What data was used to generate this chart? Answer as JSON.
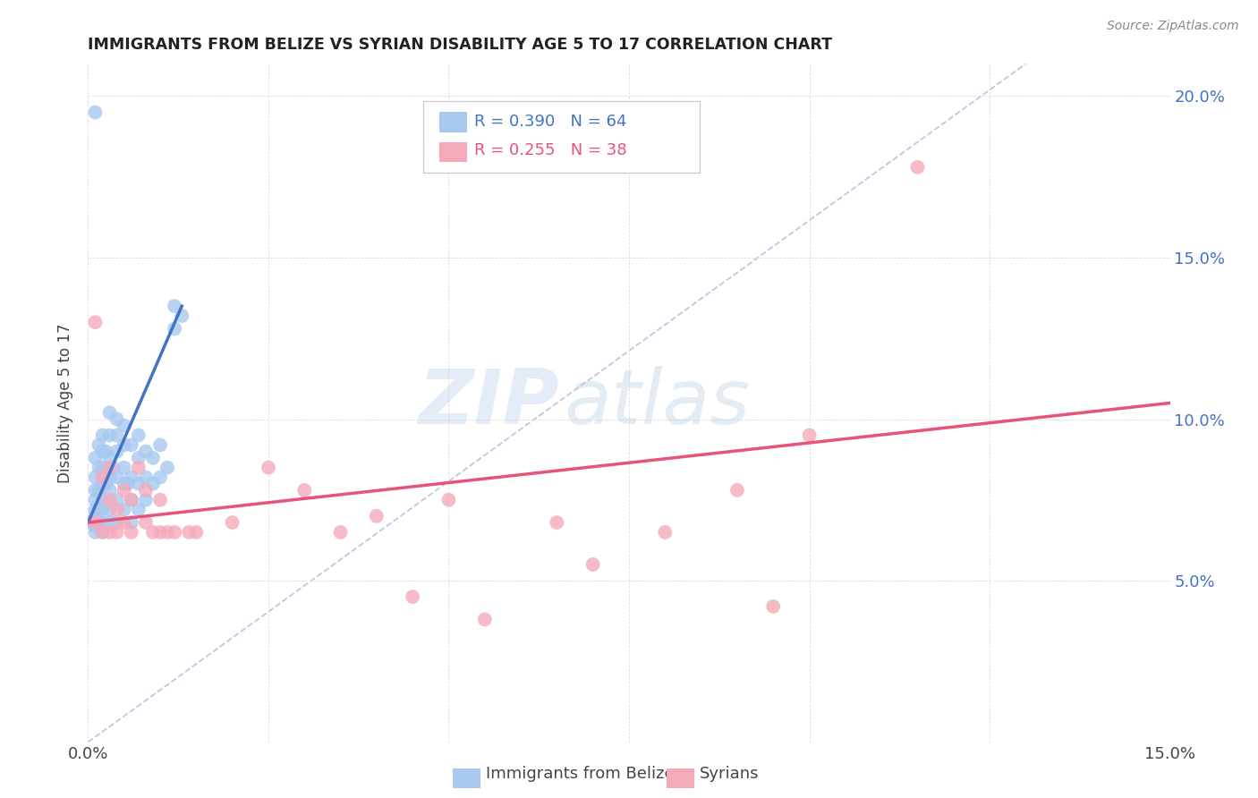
{
  "title": "IMMIGRANTS FROM BELIZE VS SYRIAN DISABILITY AGE 5 TO 17 CORRELATION CHART",
  "source": "Source: ZipAtlas.com",
  "ylabel": "Disability Age 5 to 17",
  "legend_label1": "Immigrants from Belize",
  "legend_label2": "Syrians",
  "r1": 0.39,
  "n1": 64,
  "r2": 0.255,
  "n2": 38,
  "xlim": [
    0.0,
    0.15
  ],
  "ylim": [
    0.0,
    0.21
  ],
  "color_belize": "#A8C8F0",
  "color_syria": "#F5AABB",
  "color_belize_line": "#4472C4",
  "color_syria_line": "#E8537A",
  "color_diagonal": "#B0B8D8",
  "watermark_zip": "ZIP",
  "watermark_atlas": "atlas",
  "belize_x": [
    0.0005,
    0.001,
    0.001,
    0.001,
    0.001,
    0.001,
    0.001,
    0.001,
    0.001,
    0.0015,
    0.0015,
    0.0015,
    0.0015,
    0.0015,
    0.002,
    0.002,
    0.002,
    0.002,
    0.002,
    0.002,
    0.002,
    0.002,
    0.0025,
    0.0025,
    0.003,
    0.003,
    0.003,
    0.003,
    0.003,
    0.003,
    0.003,
    0.0035,
    0.004,
    0.004,
    0.004,
    0.004,
    0.004,
    0.004,
    0.005,
    0.005,
    0.005,
    0.005,
    0.005,
    0.0055,
    0.006,
    0.006,
    0.006,
    0.006,
    0.007,
    0.007,
    0.007,
    0.007,
    0.008,
    0.008,
    0.008,
    0.009,
    0.009,
    0.01,
    0.01,
    0.011,
    0.012,
    0.012,
    0.013,
    0.001
  ],
  "belize_y": [
    0.068,
    0.065,
    0.067,
    0.07,
    0.072,
    0.075,
    0.078,
    0.082,
    0.088,
    0.068,
    0.072,
    0.078,
    0.085,
    0.092,
    0.065,
    0.068,
    0.072,
    0.075,
    0.08,
    0.085,
    0.09,
    0.095,
    0.08,
    0.09,
    0.068,
    0.072,
    0.078,
    0.082,
    0.088,
    0.095,
    0.102,
    0.085,
    0.068,
    0.075,
    0.082,
    0.09,
    0.095,
    0.1,
    0.072,
    0.08,
    0.085,
    0.092,
    0.098,
    0.08,
    0.068,
    0.075,
    0.082,
    0.092,
    0.072,
    0.08,
    0.088,
    0.095,
    0.075,
    0.082,
    0.09,
    0.08,
    0.088,
    0.082,
    0.092,
    0.085,
    0.128,
    0.135,
    0.132,
    0.195
  ],
  "syria_x": [
    0.001,
    0.001,
    0.002,
    0.002,
    0.003,
    0.003,
    0.003,
    0.004,
    0.004,
    0.005,
    0.005,
    0.006,
    0.006,
    0.007,
    0.008,
    0.008,
    0.009,
    0.01,
    0.01,
    0.011,
    0.012,
    0.014,
    0.015,
    0.02,
    0.025,
    0.03,
    0.035,
    0.04,
    0.045,
    0.05,
    0.055,
    0.065,
    0.07,
    0.08,
    0.09,
    0.095,
    0.1,
    0.115
  ],
  "syria_y": [
    0.068,
    0.13,
    0.065,
    0.082,
    0.065,
    0.075,
    0.085,
    0.065,
    0.072,
    0.068,
    0.078,
    0.065,
    0.075,
    0.085,
    0.068,
    0.078,
    0.065,
    0.065,
    0.075,
    0.065,
    0.065,
    0.065,
    0.065,
    0.068,
    0.085,
    0.078,
    0.065,
    0.07,
    0.045,
    0.075,
    0.038,
    0.068,
    0.055,
    0.065,
    0.078,
    0.042,
    0.095,
    0.178
  ],
  "belize_line_x0": 0.0,
  "belize_line_x1": 0.013,
  "belize_line_y0": 0.068,
  "belize_line_y1": 0.135,
  "syria_line_x0": 0.0,
  "syria_line_x1": 0.15,
  "syria_line_y0": 0.068,
  "syria_line_y1": 0.105
}
